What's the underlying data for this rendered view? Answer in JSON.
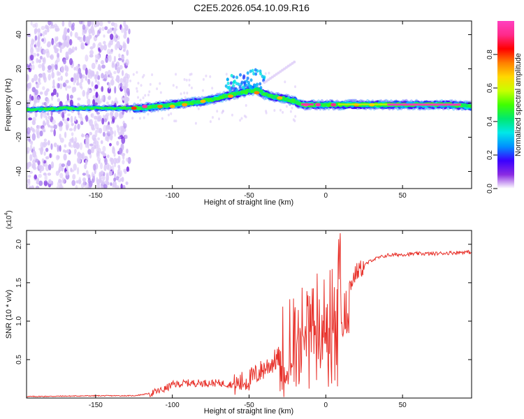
{
  "figure": {
    "title": "C2E5.2026.054.10.09.R16"
  },
  "colors": {
    "signal_line": "#e8322b",
    "axis": "#000000",
    "background": "#ffffff"
  },
  "chart_data": [
    {
      "type": "heatmap",
      "name": "spectrogram",
      "xlabel": "Height of straight line (km)",
      "ylabel": "Frequency (Hz)",
      "xlim": [
        -195,
        95
      ],
      "ylim": [
        -50,
        48
      ],
      "xticks": [
        -150,
        -100,
        -50,
        0,
        50
      ],
      "yticks": [
        -40,
        -20,
        0,
        20,
        40
      ],
      "colorbar": {
        "label": "Normalized spectral amplitude",
        "range": [
          0,
          1
        ],
        "ticks": [
          0.0,
          0.2,
          0.4,
          0.6,
          0.8
        ],
        "colormap": [
          "#ffffff",
          "#8a2be2",
          "#3a00ff",
          "#0090ff",
          "#00e8e8",
          "#00e870",
          "#40ff00",
          "#c8ff00",
          "#ffd800",
          "#ff8000",
          "#ff0000",
          "#ff2a8a",
          "#ff40c0"
        ]
      },
      "ridge": {
        "description_points_x": [
          -195,
          -170,
          -150,
          -130,
          -120,
          -110,
          -100,
          -90,
          -80,
          -70,
          -60,
          -50,
          -45,
          -40,
          -30,
          -20,
          -16,
          -10,
          0,
          10,
          20,
          40,
          60,
          80,
          95
        ],
        "description_points_y": [
          -4,
          -3,
          -3,
          -3,
          -3,
          -2,
          -1,
          0,
          1,
          3,
          5,
          7,
          8,
          5,
          3,
          1,
          -1,
          -1,
          -1,
          -1,
          -1,
          -1,
          -1,
          -1,
          -2
        ]
      }
    },
    {
      "type": "line",
      "name": "snr",
      "xlabel": "Height of straight line (km)",
      "ylabel": "SNR (10 * v/v)",
      "multiplier_label": "(x10",
      "multiplier_exponent": "4",
      "multiplier_close": ")",
      "xlim": [
        -195,
        95
      ],
      "ylim": [
        0,
        2.18
      ],
      "xticks": [
        -150,
        -100,
        -50,
        0,
        50
      ],
      "yticks": [
        0.5,
        1.0,
        1.5,
        2.0
      ],
      "ytick_labels": [
        "0.5",
        "1.0",
        "1.5",
        "2.0"
      ],
      "series": [
        {
          "name": "SNR",
          "x": [
            -195,
            -150,
            -125,
            -115,
            -105,
            -100,
            -90,
            -80,
            -70,
            -60,
            -50,
            -40,
            -30,
            -25,
            -20,
            -15,
            -10,
            -5,
            0,
            5,
            10,
            15,
            20,
            30,
            40,
            50,
            60,
            70,
            80,
            90,
            95
          ],
          "y": [
            0.02,
            0.03,
            0.03,
            0.06,
            0.12,
            0.18,
            0.2,
            0.2,
            0.2,
            0.18,
            0.25,
            0.4,
            0.55,
            0.75,
            0.85,
            0.9,
            1.0,
            1.05,
            1.1,
            1.2,
            1.3,
            1.45,
            1.65,
            1.8,
            1.86,
            1.87,
            1.88,
            1.88,
            1.89,
            1.9,
            1.9
          ]
        }
      ]
    }
  ]
}
